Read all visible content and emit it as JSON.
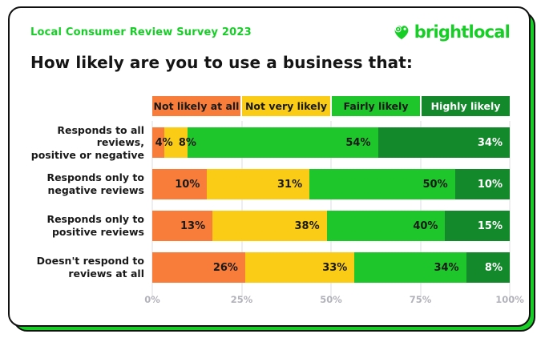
{
  "card": {
    "survey_label": "Local Consumer Review Survey 2023",
    "logo_text": "brightlocal",
    "title": "How likely are you to use a business that:"
  },
  "colors": {
    "brand_green": "#17CE27",
    "orange": "#F87D3B",
    "yellow": "#FACC15",
    "bright_green": "#1EC52B",
    "dark_green": "#13892B",
    "text_dark": "#1a1a1a",
    "text_white": "#ffffff",
    "axis_text": "#b2b2ba",
    "gridline": "#dedee2",
    "card_border": "#101010"
  },
  "chart_data": {
    "type": "bar",
    "orientation": "horizontal",
    "stacked": true,
    "grid": "vertical, 25% steps",
    "legend_position": "top, aligned with plot area",
    "xlim": [
      0,
      100
    ],
    "x_ticks": [
      "0%",
      "25%",
      "50%",
      "75%",
      "100%"
    ],
    "x_tick_positions": [
      0,
      25,
      50,
      75,
      100
    ],
    "categories": [
      [
        "Responds to all reviews,",
        "positive or negative"
      ],
      [
        "Responds only to",
        "negative reviews"
      ],
      [
        "Responds only to",
        "positive reviews"
      ],
      [
        "Doesn't respond to",
        "reviews at all"
      ]
    ],
    "series": [
      {
        "name": "Not likely at all",
        "color": "#F87D3B",
        "label_color": "#1a1a1a",
        "values": [
          4,
          10,
          13,
          26
        ]
      },
      {
        "name": "Not very likely",
        "color": "#FACC15",
        "label_color": "#1a1a1a",
        "values": [
          8,
          31,
          38,
          33
        ]
      },
      {
        "name": "Fairly likely",
        "color": "#1EC52B",
        "label_color": "#1a1a1a",
        "values": [
          54,
          50,
          40,
          34
        ]
      },
      {
        "name": "Highly likely",
        "color": "#13892B",
        "label_color": "#ffffff",
        "values": [
          34,
          10,
          15,
          8
        ]
      }
    ],
    "value_suffix": "%"
  }
}
